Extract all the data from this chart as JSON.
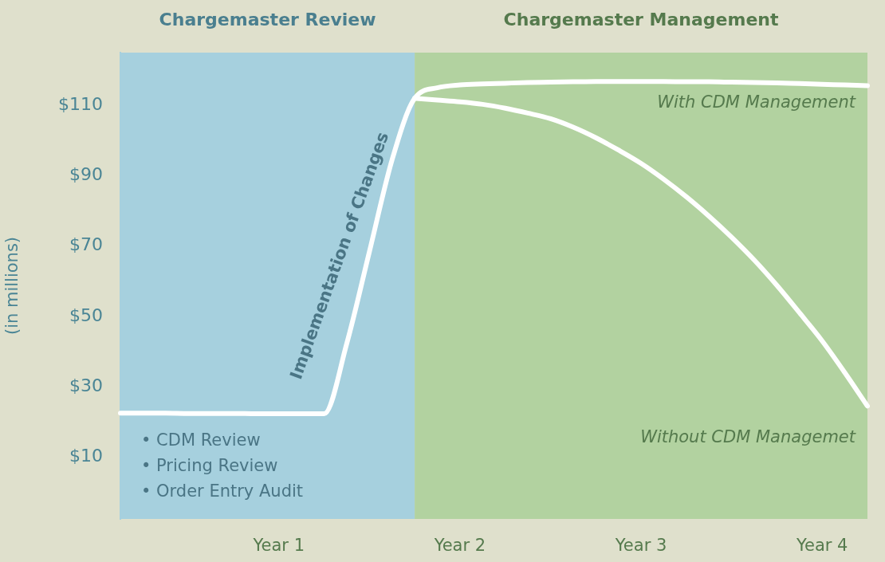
{
  "chart_data": {
    "type": "line",
    "ylabel": "(in millions)",
    "marker": "none",
    "grid": false,
    "legend": false,
    "categories": [
      null,
      null,
      null,
      null,
      null,
      null,
      null,
      "Year 1",
      null,
      null,
      null,
      null,
      null,
      null,
      null,
      "Year 2",
      null,
      null,
      null,
      null,
      null,
      null,
      null,
      "Year 3",
      null,
      null,
      null,
      null,
      null,
      null,
      null,
      "Year 4",
      null,
      null
    ],
    "ylim": [
      -7.6,
      125
    ],
    "yticks": [
      {
        "value": 10,
        "label": "$10"
      },
      {
        "value": 30,
        "label": "$30"
      },
      {
        "value": 50,
        "label": "$50"
      },
      {
        "value": 70,
        "label": "$70"
      },
      {
        "value": 90,
        "label": "$90"
      },
      {
        "value": 110,
        "label": "$110"
      }
    ],
    "series": [
      {
        "name": "With CDM Management",
        "color": "#ffffff",
        "values": [
          22.5,
          22.5,
          22.5,
          22.4,
          22.4,
          22.4,
          22.3,
          22.3,
          22.3,
          22.3,
          42.3,
          68.4,
          94.5,
          112,
          115,
          115.8,
          116.1,
          116.3,
          116.5,
          116.6,
          116.7,
          116.8,
          116.8,
          116.8,
          116.8,
          116.7,
          116.7,
          116.6,
          116.5,
          116.4,
          116.2,
          116,
          115.8,
          115.6
        ]
      },
      {
        "name": "Without CDM Managemet",
        "color": "#ffffff",
        "values": [
          null,
          null,
          null,
          null,
          null,
          null,
          null,
          null,
          null,
          null,
          null,
          null,
          null,
          112,
          111.5,
          111,
          110.3,
          109.2,
          107.8,
          106.2,
          103.8,
          100.8,
          97.3,
          93.5,
          89,
          84,
          78.5,
          72.5,
          66,
          58.8,
          51,
          43,
          34,
          24.5
        ]
      }
    ],
    "annotations": [
      "Implementation of Changes",
      "Chargemaster Review",
      "Chargemaster Management",
      "• CDM Review",
      "• Pricing Review",
      "• Order Entry Audit"
    ]
  }
}
